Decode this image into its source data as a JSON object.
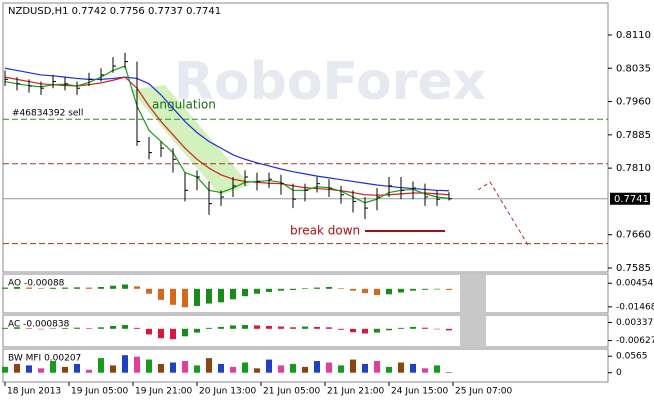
{
  "chart_data": [
    {
      "type": "ohlc",
      "title": "NZDUSD,H1 0.7742 0.7756 0.7737 0.7741",
      "watermark": "RoboForex",
      "x": [
        0,
        3,
        6,
        9,
        12,
        15,
        18,
        21,
        24,
        27,
        30,
        33,
        36,
        39,
        42,
        45,
        48,
        51,
        54,
        57,
        60,
        63,
        66,
        69,
        72,
        75,
        78,
        81,
        84,
        87,
        90,
        93,
        96,
        99,
        102,
        105,
        108,
        111
      ],
      "high": [
        0.803,
        0.8015,
        0.801,
        0.8005,
        0.802,
        0.8015,
        0.8005,
        0.8025,
        0.8035,
        0.806,
        0.807,
        0.805,
        0.788,
        0.787,
        0.7855,
        0.78,
        0.7805,
        0.778,
        0.776,
        0.779,
        0.7805,
        0.78,
        0.78,
        0.7795,
        0.7775,
        0.7775,
        0.779,
        0.7785,
        0.777,
        0.776,
        0.7745,
        0.7765,
        0.779,
        0.779,
        0.778,
        0.7775,
        0.776,
        0.7756
      ],
      "low": [
        0.7995,
        0.7985,
        0.798,
        0.7975,
        0.799,
        0.7985,
        0.7975,
        0.7995,
        0.8005,
        0.8025,
        0.8035,
        0.786,
        0.783,
        0.7835,
        0.78,
        0.7735,
        0.776,
        0.7705,
        0.7725,
        0.7745,
        0.777,
        0.776,
        0.7765,
        0.775,
        0.772,
        0.7735,
        0.7755,
        0.7745,
        0.773,
        0.771,
        0.7695,
        0.7715,
        0.7745,
        0.774,
        0.774,
        0.7725,
        0.7725,
        0.7737
      ],
      "close": [
        0.801,
        0.8,
        0.7995,
        0.799,
        0.8005,
        0.8,
        0.799,
        0.801,
        0.802,
        0.804,
        0.805,
        0.787,
        0.7845,
        0.7855,
        0.783,
        0.776,
        0.779,
        0.773,
        0.7745,
        0.777,
        0.779,
        0.778,
        0.7785,
        0.7775,
        0.774,
        0.776,
        0.7775,
        0.7765,
        0.775,
        0.7735,
        0.772,
        0.7745,
        0.777,
        0.776,
        0.7765,
        0.7745,
        0.774,
        0.7741
      ],
      "bar_color": "#000000",
      "series": [
        {
          "color": "#1f2fd6",
          "values": [
            0.8035,
            0.803,
            0.8025,
            0.802,
            0.8018,
            0.8015,
            0.8012,
            0.801,
            0.801,
            0.8012,
            0.8015,
            0.8012,
            0.8,
            0.7975,
            0.7945,
            0.7915,
            0.789,
            0.787,
            0.7855,
            0.784,
            0.783,
            0.7822,
            0.7815,
            0.7808,
            0.7802,
            0.7797,
            0.7792,
            0.7788,
            0.7784,
            0.778,
            0.7776,
            0.7772,
            0.7769,
            0.7766,
            0.7764,
            0.7762,
            0.776,
            0.7759
          ]
        },
        {
          "color": "#d62020",
          "values": [
            0.8015,
            0.801,
            0.8005,
            0.8,
            0.7998,
            0.7996,
            0.7995,
            0.7998,
            0.8002,
            0.8008,
            0.8015,
            0.799,
            0.795,
            0.7915,
            0.7885,
            0.7855,
            0.783,
            0.781,
            0.7795,
            0.7785,
            0.778,
            0.7778,
            0.7776,
            0.7775,
            0.777,
            0.7766,
            0.7764,
            0.7762,
            0.7759,
            0.7755,
            0.775,
            0.7749,
            0.775,
            0.7752,
            0.7754,
            0.7754,
            0.7752,
            0.775
          ]
        },
        {
          "color": "#1a9a1a",
          "values": [
            0.8005,
            0.8,
            0.7996,
            0.7993,
            0.7998,
            0.7999,
            0.7995,
            0.8003,
            0.8015,
            0.803,
            0.804,
            0.795,
            0.7895,
            0.787,
            0.7845,
            0.78,
            0.779,
            0.776,
            0.7755,
            0.7765,
            0.7778,
            0.778,
            0.7782,
            0.7778,
            0.776,
            0.776,
            0.7768,
            0.7766,
            0.7758,
            0.7745,
            0.7732,
            0.774,
            0.7755,
            0.776,
            0.7762,
            0.7752,
            0.7745,
            0.7742
          ]
        }
      ],
      "levels": [
        {
          "value": 0.792,
          "color": "#2e8b2e"
        },
        {
          "value": 0.782,
          "color": "#b03030"
        },
        {
          "value": 0.764,
          "color": "#b03030"
        }
      ],
      "last_price": 0.7741,
      "xlim": [
        -0.5,
        150.75
      ],
      "ylim": [
        0.7576,
        0.8182
      ],
      "yticks": [
        {
          "value": 0.811,
          "label": "0.8110"
        },
        0.8035,
        {
          "value": 0.796,
          "label": "0.7960"
        },
        0.7885,
        {
          "value": 0.781,
          "label": "0.7810"
        },
        {
          "value": 0.766,
          "label": "0.7660"
        },
        0.7585
      ],
      "xticks": [
        {
          "value": 0,
          "label": "18 Jun 2013"
        },
        {
          "value": 16,
          "label": "19 Jun 05:00"
        },
        {
          "value": 32,
          "label": "19 Jun 21:00"
        },
        {
          "value": 48,
          "label": "20 Jun 13:00"
        },
        {
          "value": 64,
          "label": "21 Jun 05:00"
        },
        {
          "value": 80,
          "label": "21 Jun 21:00"
        },
        {
          "value": 96,
          "label": "24 Jun 15:00"
        },
        {
          "value": 112,
          "label": "25 Jun 07:00"
        }
      ],
      "annotations": [
        {
          "text": "angulation"
        },
        {
          "text": "#46834392 sell"
        },
        {
          "text": "break down"
        }
      ]
    },
    {
      "type": "bar",
      "label": "AO -0.00088",
      "up_color": "#1a8a1a",
      "down_color": "#d2691e",
      "values": [
        0.001,
        0.0015,
        0.001,
        0.0005,
        0.0008,
        0.001,
        0.0012,
        0.001,
        0.0015,
        0.0025,
        0.0035,
        0.002,
        -0.004,
        -0.009,
        -0.013,
        -0.015,
        -0.014,
        -0.012,
        -0.011,
        -0.0085,
        -0.006,
        -0.004,
        -0.0025,
        -0.0015,
        -0.001,
        0.0005,
        0.001,
        0.0015,
        0.0005,
        -0.0015,
        -0.0035,
        -0.005,
        -0.0045,
        -0.003,
        -0.0015,
        -0.0008,
        -0.0005,
        -0.00088
      ],
      "ylim": [
        -0.01969,
        0.01206
      ],
      "yticks": [
        0.00454,
        -0.01468
      ]
    },
    {
      "type": "bar",
      "label": "AC -0.000838",
      "up_color": "#1a8a1a",
      "down_color": "#d61a3c",
      "values": [
        0.0005,
        0.0008,
        0.0003,
        -0.0002,
        0.0002,
        0.0004,
        0.0006,
        0.0003,
        0.0008,
        0.0015,
        0.002,
        0.0005,
        -0.003,
        -0.005,
        -0.0055,
        -0.004,
        -0.002,
        0.0005,
        0.001,
        0.0018,
        0.002,
        0.0018,
        0.0015,
        0.0012,
        0.0008,
        0.0012,
        0.001,
        0.0008,
        -0.0005,
        -0.0018,
        -0.0025,
        -0.002,
        -0.0008,
        0.0005,
        0.001,
        0.0006,
        -0.0002,
        -0.000838
      ],
      "ylim": [
        -0.00967,
        0.00734
      ],
      "yticks": [
        0.003372,
        -0.00627
      ]
    },
    {
      "type": "bar",
      "label": "BW MFI 0.00207",
      "colors": [
        "#1a9a1a",
        "#8b4513",
        "#2040c0",
        "#e0409a"
      ],
      "values": [
        0.02,
        0.03,
        0.025,
        0.015,
        0.04,
        0.02,
        0.03,
        0.01,
        0.05,
        0.025,
        0.06,
        0.055,
        0.045,
        0.03,
        0.035,
        0.04,
        0.025,
        0.05,
        0.03,
        0.02,
        0.035,
        0.015,
        0.045,
        0.025,
        0.03,
        0.02,
        0.04,
        0.035,
        0.025,
        0.045,
        0.03,
        0.04,
        0.02,
        0.035,
        0.03,
        0.015,
        0.025,
        0.00207
      ],
      "ylim": [
        -0.0318,
        0.0812
      ],
      "yticks": [
        0.0565,
        0
      ]
    }
  ]
}
